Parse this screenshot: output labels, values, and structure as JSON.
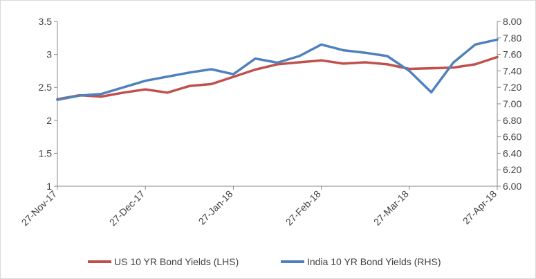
{
  "chart_data": {
    "type": "line",
    "x": [
      "27-Nov-17",
      "04-Dec-17",
      "11-Dec-17",
      "18-Dec-17",
      "27-Dec-17",
      "03-Jan-18",
      "10-Jan-18",
      "17-Jan-18",
      "27-Jan-18",
      "03-Feb-18",
      "10-Feb-18",
      "17-Feb-18",
      "27-Feb-18",
      "06-Mar-18",
      "13-Mar-18",
      "20-Mar-18",
      "27-Mar-18",
      "03-Apr-18",
      "10-Apr-18",
      "17-Apr-18",
      "27-Apr-18"
    ],
    "series": [
      {
        "name": "US 10 YR Bond Yields (LHS)",
        "axis": "left",
        "color": "#c0504d",
        "values": [
          2.32,
          2.38,
          2.36,
          2.42,
          2.47,
          2.42,
          2.52,
          2.55,
          2.66,
          2.77,
          2.85,
          2.88,
          2.91,
          2.86,
          2.88,
          2.85,
          2.78,
          2.79,
          2.8,
          2.85,
          2.96
        ]
      },
      {
        "name": "India 10 YR Bond Yields (RHS)",
        "axis": "right",
        "color": "#4f81bd",
        "values": [
          7.05,
          7.1,
          7.12,
          7.2,
          7.28,
          7.33,
          7.38,
          7.42,
          7.36,
          7.55,
          7.5,
          7.58,
          7.72,
          7.65,
          7.62,
          7.58,
          7.4,
          7.14,
          7.5,
          7.72,
          7.78
        ]
      }
    ],
    "x_tick_labels": [
      "27-Nov-17",
      "27-Dec-17",
      "27-Jan-18",
      "27-Feb-18",
      "27-Mar-18",
      "27-Apr-18"
    ],
    "y_left": {
      "ticks": [
        "1",
        "1.5",
        "2",
        "2.5",
        "3",
        "3.5"
      ],
      "min": 1,
      "max": 3.5
    },
    "y_right": {
      "ticks": [
        "6.00",
        "6.20",
        "6.40",
        "6.60",
        "6.80",
        "7.00",
        "7.20",
        "7.40",
        "7.60",
        "7.80",
        "8.00"
      ],
      "min": 6.0,
      "max": 8.0
    },
    "grid": false,
    "legend_position": "bottom"
  }
}
